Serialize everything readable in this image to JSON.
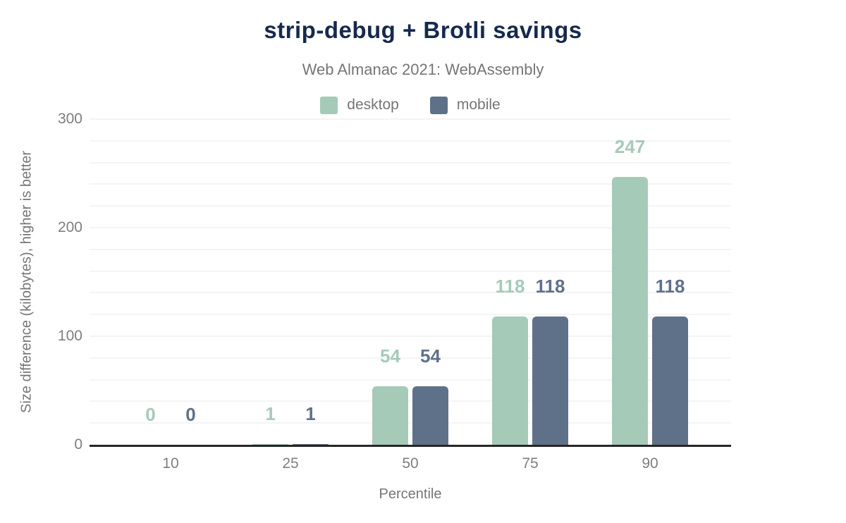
{
  "chart_data": {
    "type": "bar",
    "title": "strip-debug + Brotli savings",
    "subtitle": "Web Almanac 2021: WebAssembly",
    "categories": [
      "10",
      "25",
      "50",
      "75",
      "90"
    ],
    "series": [
      {
        "name": "desktop",
        "color": "#a6cab8",
        "values": [
          0,
          1,
          54,
          118,
          247
        ]
      },
      {
        "name": "mobile",
        "color": "#5f7189",
        "values": [
          0,
          1,
          54,
          118,
          118
        ]
      }
    ],
    "xlabel": "Percentile",
    "ylabel": "Size difference (kilobytes), higher is better",
    "ylim": [
      0,
      300
    ],
    "yticks": [
      0,
      100,
      200,
      300
    ],
    "gridline_step": 20,
    "grid": true,
    "legend_position": "top",
    "data_labels": true,
    "colors": {
      "title": "#16294e",
      "subtitle_text": "#757575",
      "tick_text": "#7e7e7e",
      "axis_line": "#262626",
      "gridline": "#f4f4f4",
      "background": "#ffffff"
    }
  }
}
